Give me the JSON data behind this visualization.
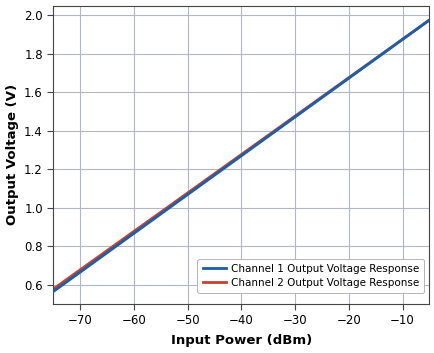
{
  "title": "",
  "xlabel": "Input Power (dBm)",
  "ylabel": "Output Voltage (V)",
  "x_start": -75,
  "x_end": -5,
  "xlim": [
    -75,
    -5
  ],
  "ylim": [
    0.5,
    2.05
  ],
  "yticks": [
    0.6,
    0.8,
    1.0,
    1.2,
    1.4,
    1.6,
    1.8,
    2.0
  ],
  "xticks": [
    -70,
    -60,
    -50,
    -40,
    -30,
    -20,
    -10
  ],
  "ch1_color": "#1a5fa8",
  "ch2_color": "#c94030",
  "ch1_label": "Channel 1 Output Voltage Response",
  "ch2_label": "Channel 2 Output Voltage Response",
  "grid_color": "#b0b8c8",
  "bg_color": "#ffffff",
  "line_width": 2.0,
  "legend_fontsize": 7.5,
  "axis_label_fontsize": 9.5,
  "tick_fontsize": 8.5,
  "ch1_x0": -75,
  "ch1_y0": 0.565,
  "ch1_x1": -5,
  "ch1_y1": 1.975,
  "ch2_x0": -75,
  "ch2_y0": 0.578,
  "ch2_x1": -5,
  "ch2_y1": 1.975
}
